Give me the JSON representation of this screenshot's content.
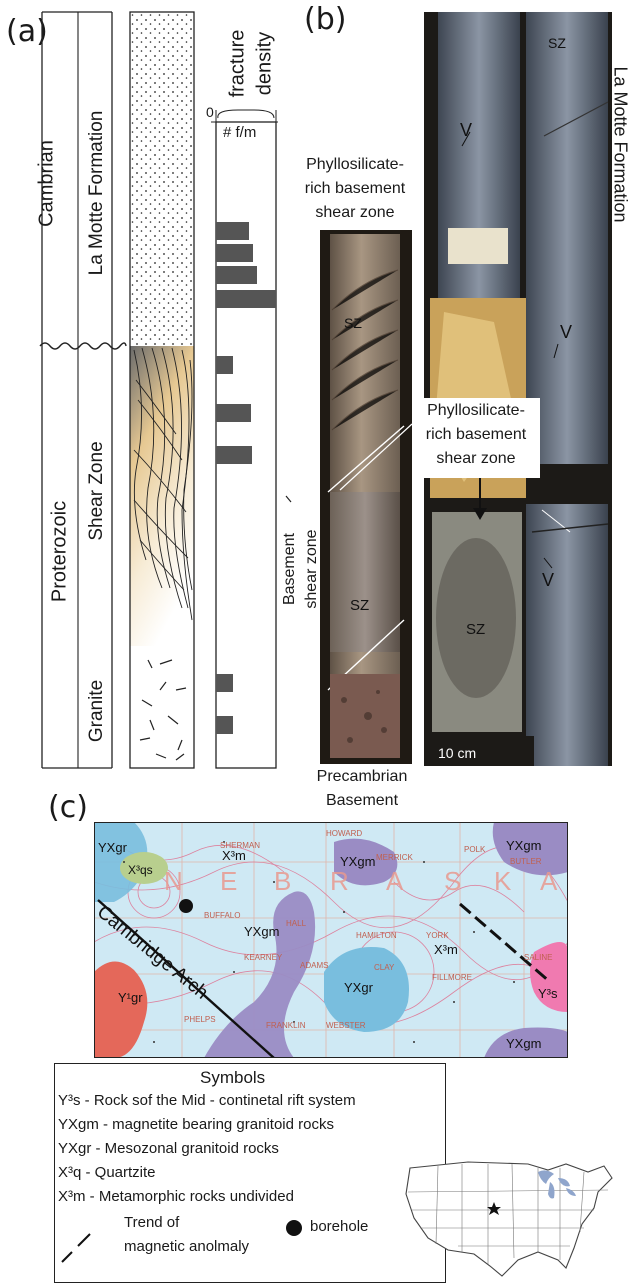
{
  "panel_a": {
    "letter": "(a)",
    "eras": {
      "upper": "Cambrian",
      "lower": "Proterozoic"
    },
    "units": {
      "la_motte": "La Motte Formation",
      "shear_zone": "Shear Zone",
      "granite": "Granite"
    },
    "fracture_header": [
      "fracture",
      "density"
    ],
    "axis_min": "0",
    "axis_unit": "# f/m",
    "bar_values_relative": [
      0.55,
      0.62,
      0.68,
      1.0,
      0.28,
      0.58,
      0.6,
      0.28,
      0.28
    ],
    "basement_label": [
      "Basement",
      "shear zone"
    ]
  },
  "panel_b": {
    "letter": "(b)",
    "top_label": [
      "Phyllosilicate-",
      "rich basement",
      "shear zone"
    ],
    "mid_label": [
      "Phyllosilicate-",
      "rich basement",
      "shear zone"
    ],
    "bottom_label": [
      "Precambrian",
      "Basement"
    ],
    "side_label": "La Motte Formation",
    "marks": {
      "sz": "SZ",
      "v": "V"
    },
    "scale": "10 cm"
  },
  "panel_c": {
    "letter": "(c)",
    "map_units": {
      "yxgr": "YXgr",
      "x3qs": "X³qs",
      "x3m": "X³m",
      "yxgm": "YXgm",
      "y1gr": "Y¹gr",
      "y3s": "Y³s"
    },
    "state_letters": [
      "N",
      "E",
      "B",
      "R",
      "A",
      "S",
      "K",
      "A"
    ],
    "arch_label": "Cambridge Arch",
    "counties": [
      "HOWARD",
      "SHERMAN",
      "MERRICK",
      "POLK",
      "BUTLER",
      "HALL",
      "HAMILTON",
      "YORK",
      "BUFFALO",
      "KEARNEY",
      "ADAMS",
      "CLAY",
      "FILLMORE",
      "SALINE",
      "FRANKLIN",
      "WEBSTER",
      "PHELPS"
    ],
    "colors": {
      "purple": "#9a8cc4",
      "blue": "#8ccbe6",
      "red": "#e4685a",
      "green": "#b8cf8e",
      "pink": "#f07ab0",
      "map_bg": "#cfe9f4"
    }
  },
  "legend": {
    "title": "Symbols",
    "items": [
      "Y³s - Rock sof the Mid - continetal rift system",
      "YXgm - magnetite bearing granitoid rocks",
      "YXgr -  Mesozonal granitoid rocks",
      "X³q - Quartzite",
      "X³m - Metamorphic rocks undivided"
    ],
    "trend": [
      "Trend of",
      "magnetic anolmaly"
    ],
    "borehole": "borehole"
  }
}
